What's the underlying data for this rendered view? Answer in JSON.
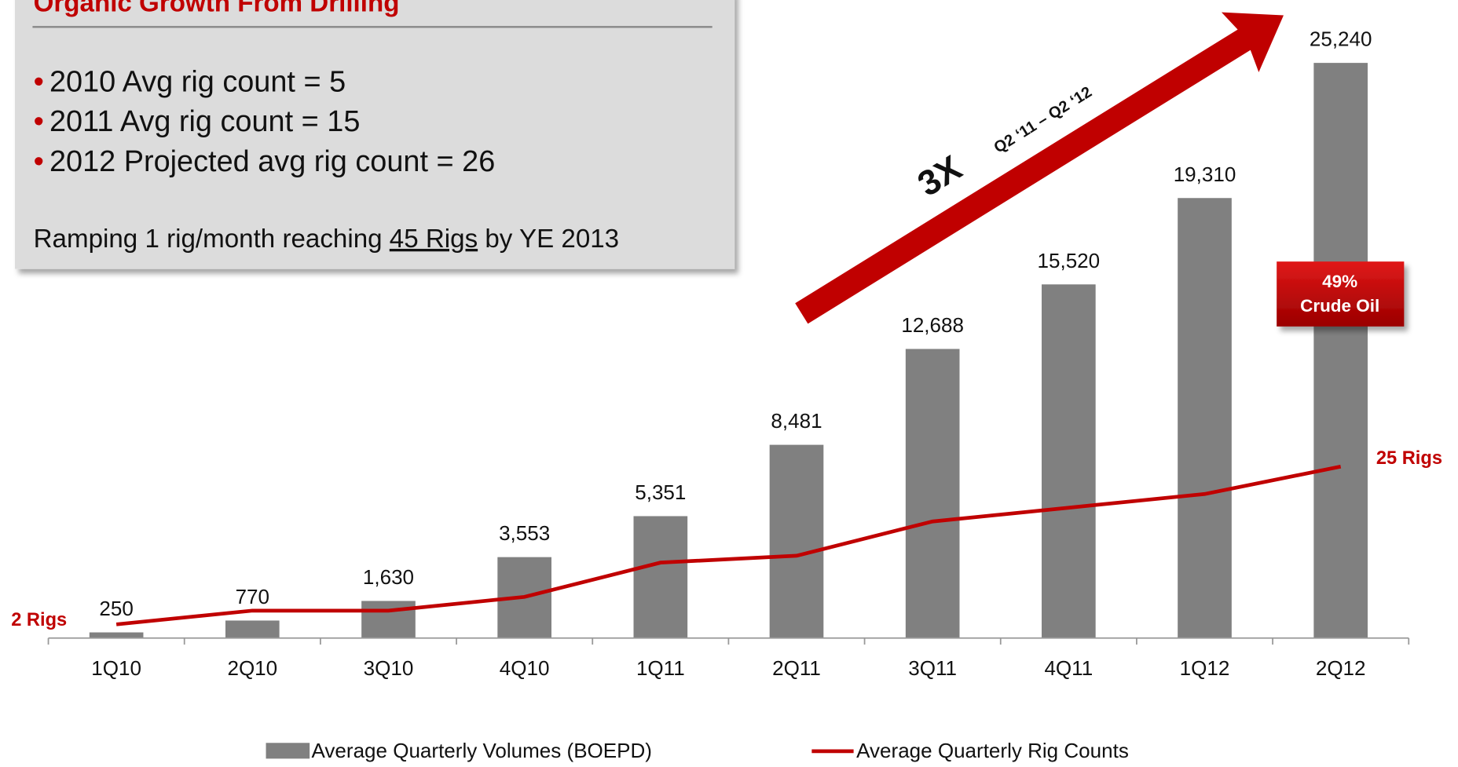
{
  "chart_data": {
    "type": "bar",
    "categories": [
      "1Q10",
      "2Q10",
      "3Q10",
      "4Q10",
      "1Q11",
      "2Q11",
      "3Q11",
      "4Q11",
      "1Q12",
      "2Q12"
    ],
    "series": [
      {
        "name": "Average Quarterly Volumes (BOEPD)",
        "color": "#808080",
        "type": "bar",
        "values": [
          250,
          770,
          1630,
          3553,
          5351,
          8481,
          12688,
          15520,
          19310,
          25240
        ],
        "value_labels": [
          "250",
          "770",
          "1,630",
          "3,553",
          "5,351",
          "8,481",
          "12,688",
          "15,520",
          "19,310",
          "25,240"
        ]
      },
      {
        "name": "Average Quarterly Rig Counts",
        "color": "#c00000",
        "type": "line",
        "axis": "y2",
        "values": [
          2,
          4,
          4,
          6,
          11,
          12,
          17,
          19,
          21,
          25
        ]
      }
    ],
    "ylim": [
      0,
      28000
    ],
    "y2lim": [
      0,
      93
    ],
    "annotations": {
      "start_rigs": "2 Rigs",
      "end_rigs": "25 Rigs",
      "crude_oil_pct": "49%",
      "crude_oil_label": "Crude Oil",
      "growth_multiple": "3X",
      "growth_period": "Q2 ‘11 – Q2 ‘12"
    },
    "text_box": {
      "title": "Organic Growth From Drilling",
      "bullets": [
        "2010 Avg rig count = 5",
        "2011 Avg rig count = 15",
        "2012 Projected avg rig count = 26"
      ],
      "bullet_symbol": "•",
      "note_start": "Ramping 1 rig/month reaching ",
      "note_underlined": "45 Rigs",
      "note_end": " by YE 2013"
    }
  }
}
